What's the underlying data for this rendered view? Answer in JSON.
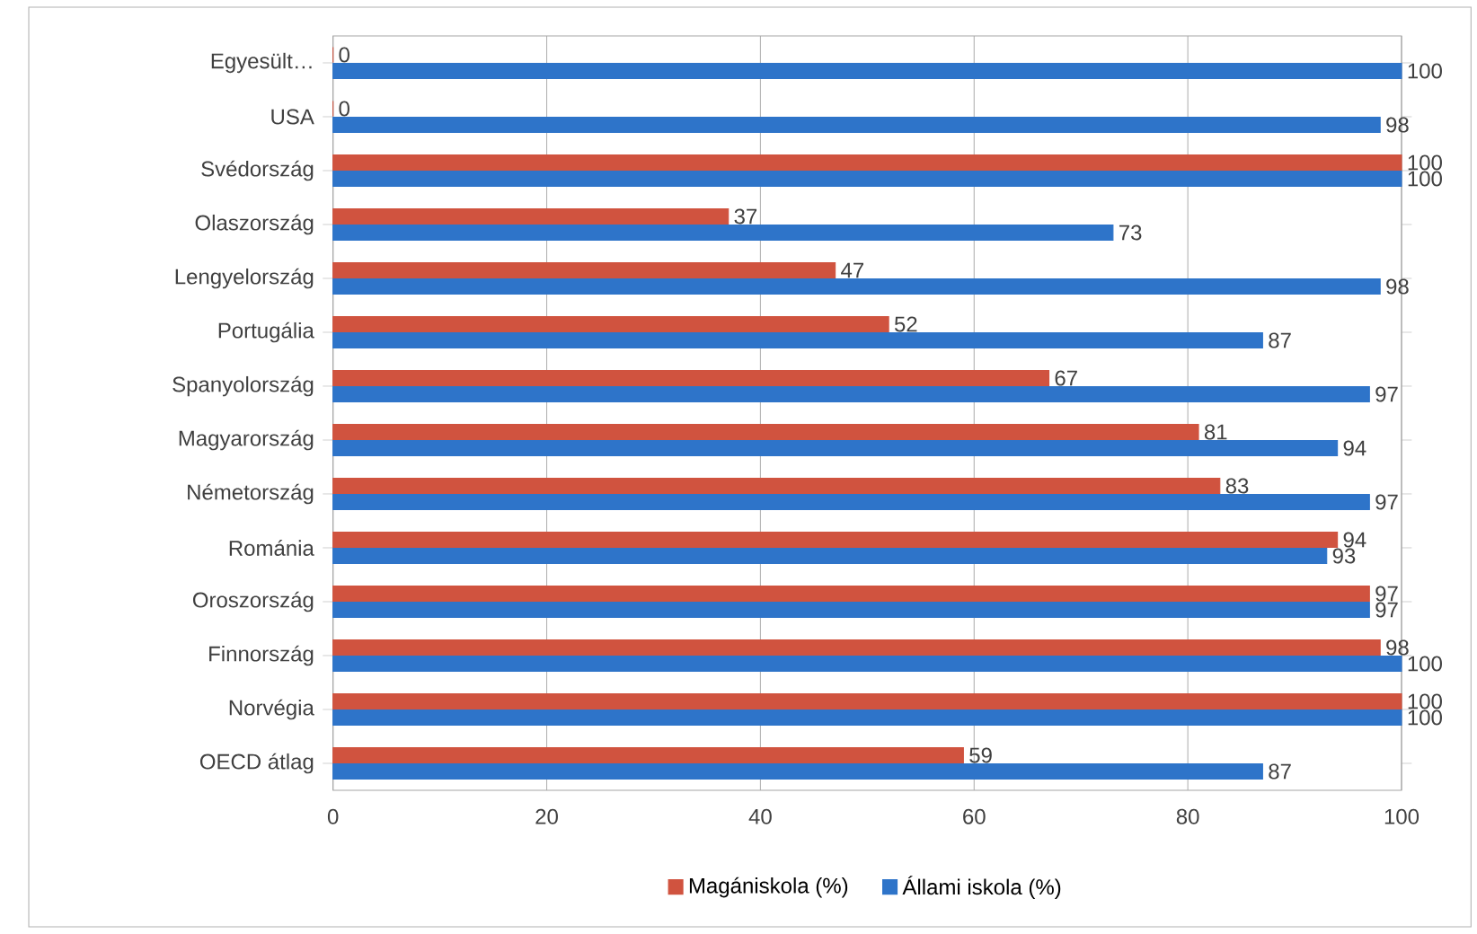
{
  "chart_data": {
    "type": "bar",
    "orientation": "horizontal",
    "categories": [
      "Egyesült…",
      "USA",
      "Svédország",
      "Olaszország",
      "Lengyelország",
      "Portugália",
      "Spanyolország",
      "Magyarország",
      "Németország",
      "Románia",
      "Oroszország",
      "Finnország",
      "Norvégia",
      "OECD átlag"
    ],
    "series": [
      {
        "name": "Magániskola (%)",
        "color": "#d0533f",
        "values": [
          0,
          0,
          100,
          37,
          47,
          52,
          67,
          81,
          83,
          94,
          97,
          98,
          100,
          59
        ]
      },
      {
        "name": "Állami iskola (%)",
        "color": "#2e74c9",
        "values": [
          100,
          98,
          100,
          73,
          98,
          87,
          97,
          94,
          97,
          93,
          97,
          100,
          100,
          87
        ]
      }
    ],
    "xlim": [
      0,
      100
    ],
    "xticks": [
      0,
      20,
      40,
      60,
      80,
      100
    ],
    "grid": "x",
    "legend": "bottom",
    "data_labels": true
  }
}
